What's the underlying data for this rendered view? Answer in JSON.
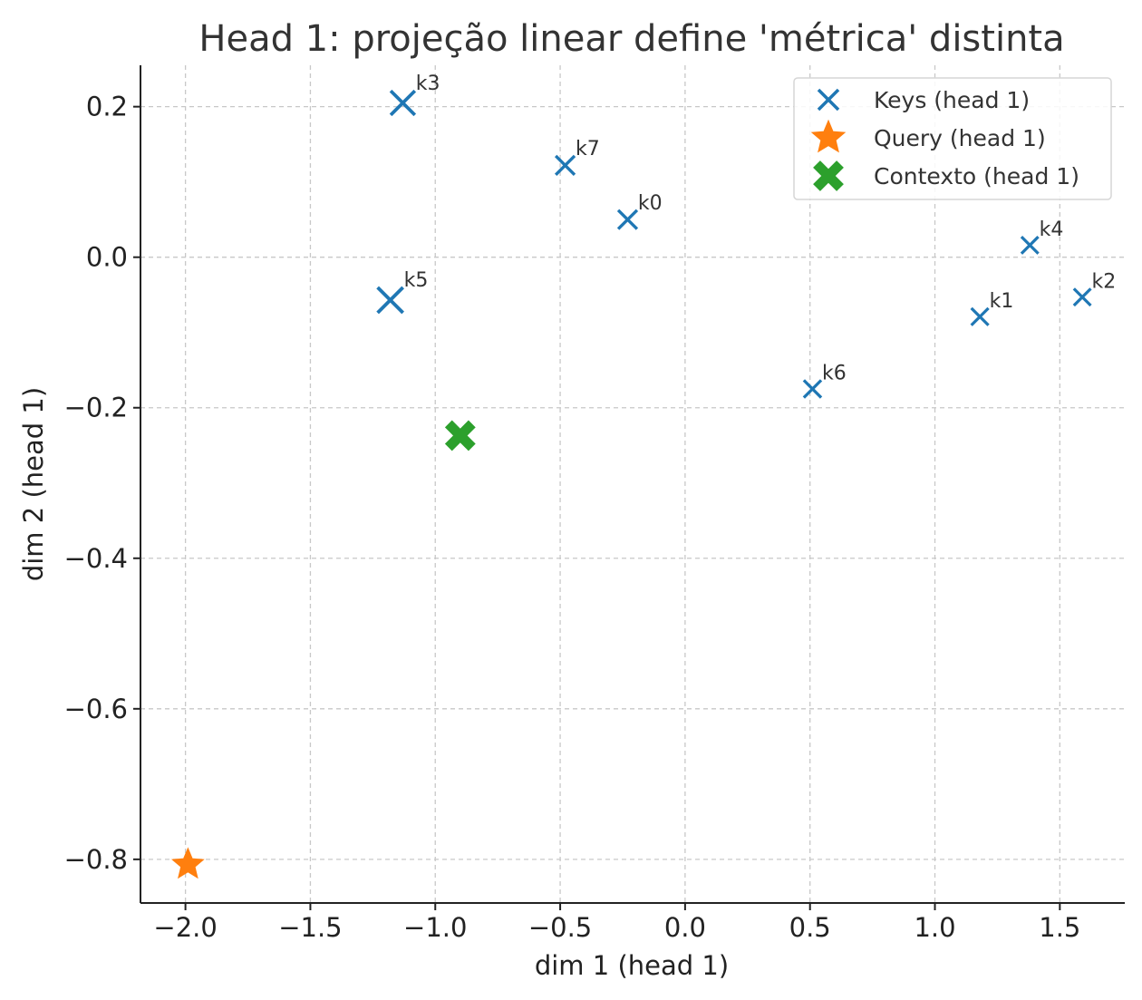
{
  "chart_data": {
    "type": "scatter",
    "title": "Head 1: projeção linear define 'métrica' distinta",
    "xlabel": "dim 1 (head 1)",
    "ylabel": "dim 2 (head 1)",
    "xlim": [
      -2.18,
      1.76
    ],
    "ylim": [
      -0.858,
      0.255
    ],
    "xticks": [
      -2.0,
      -1.5,
      -1.0,
      -0.5,
      0.0,
      0.5,
      1.0,
      1.5
    ],
    "xtick_labels": [
      "−2.0",
      "−1.5",
      "−1.0",
      "−0.5",
      "0.0",
      "0.5",
      "1.0",
      "1.5"
    ],
    "yticks": [
      0.2,
      0.0,
      -0.2,
      -0.4,
      -0.6,
      -0.8
    ],
    "ytick_labels": [
      "0.2",
      "0.0",
      "−0.2",
      "−0.4",
      "−0.6",
      "−0.8"
    ],
    "grid": true,
    "legend_position": "top-right",
    "series": [
      {
        "name": "Keys (head 1)",
        "marker": "x",
        "color": "#1f77b4",
        "points": [
          {
            "label": "k0",
            "x": -0.23,
            "y": 0.05,
            "weight": 0.45
          },
          {
            "label": "k1",
            "x": 1.18,
            "y": -0.079,
            "weight": 0.3
          },
          {
            "label": "k2",
            "x": 1.59,
            "y": -0.053,
            "weight": 0.28
          },
          {
            "label": "k3",
            "x": -1.13,
            "y": 0.205,
            "weight": 0.9
          },
          {
            "label": "k4",
            "x": 1.38,
            "y": 0.016,
            "weight": 0.28
          },
          {
            "label": "k5",
            "x": -1.18,
            "y": -0.057,
            "weight": 1.0
          },
          {
            "label": "k6",
            "x": 0.51,
            "y": -0.175,
            "weight": 0.32
          },
          {
            "label": "k7",
            "x": -0.48,
            "y": 0.122,
            "weight": 0.45
          }
        ]
      },
      {
        "name": "Query (head 1)",
        "marker": "star",
        "color": "#ff7f0e",
        "points": [
          {
            "x": -1.99,
            "y": -0.807
          }
        ]
      },
      {
        "name": "Contexto (head 1)",
        "marker": "X",
        "color": "#2ca02c",
        "points": [
          {
            "x": -0.9,
            "y": -0.237
          }
        ]
      }
    ]
  }
}
